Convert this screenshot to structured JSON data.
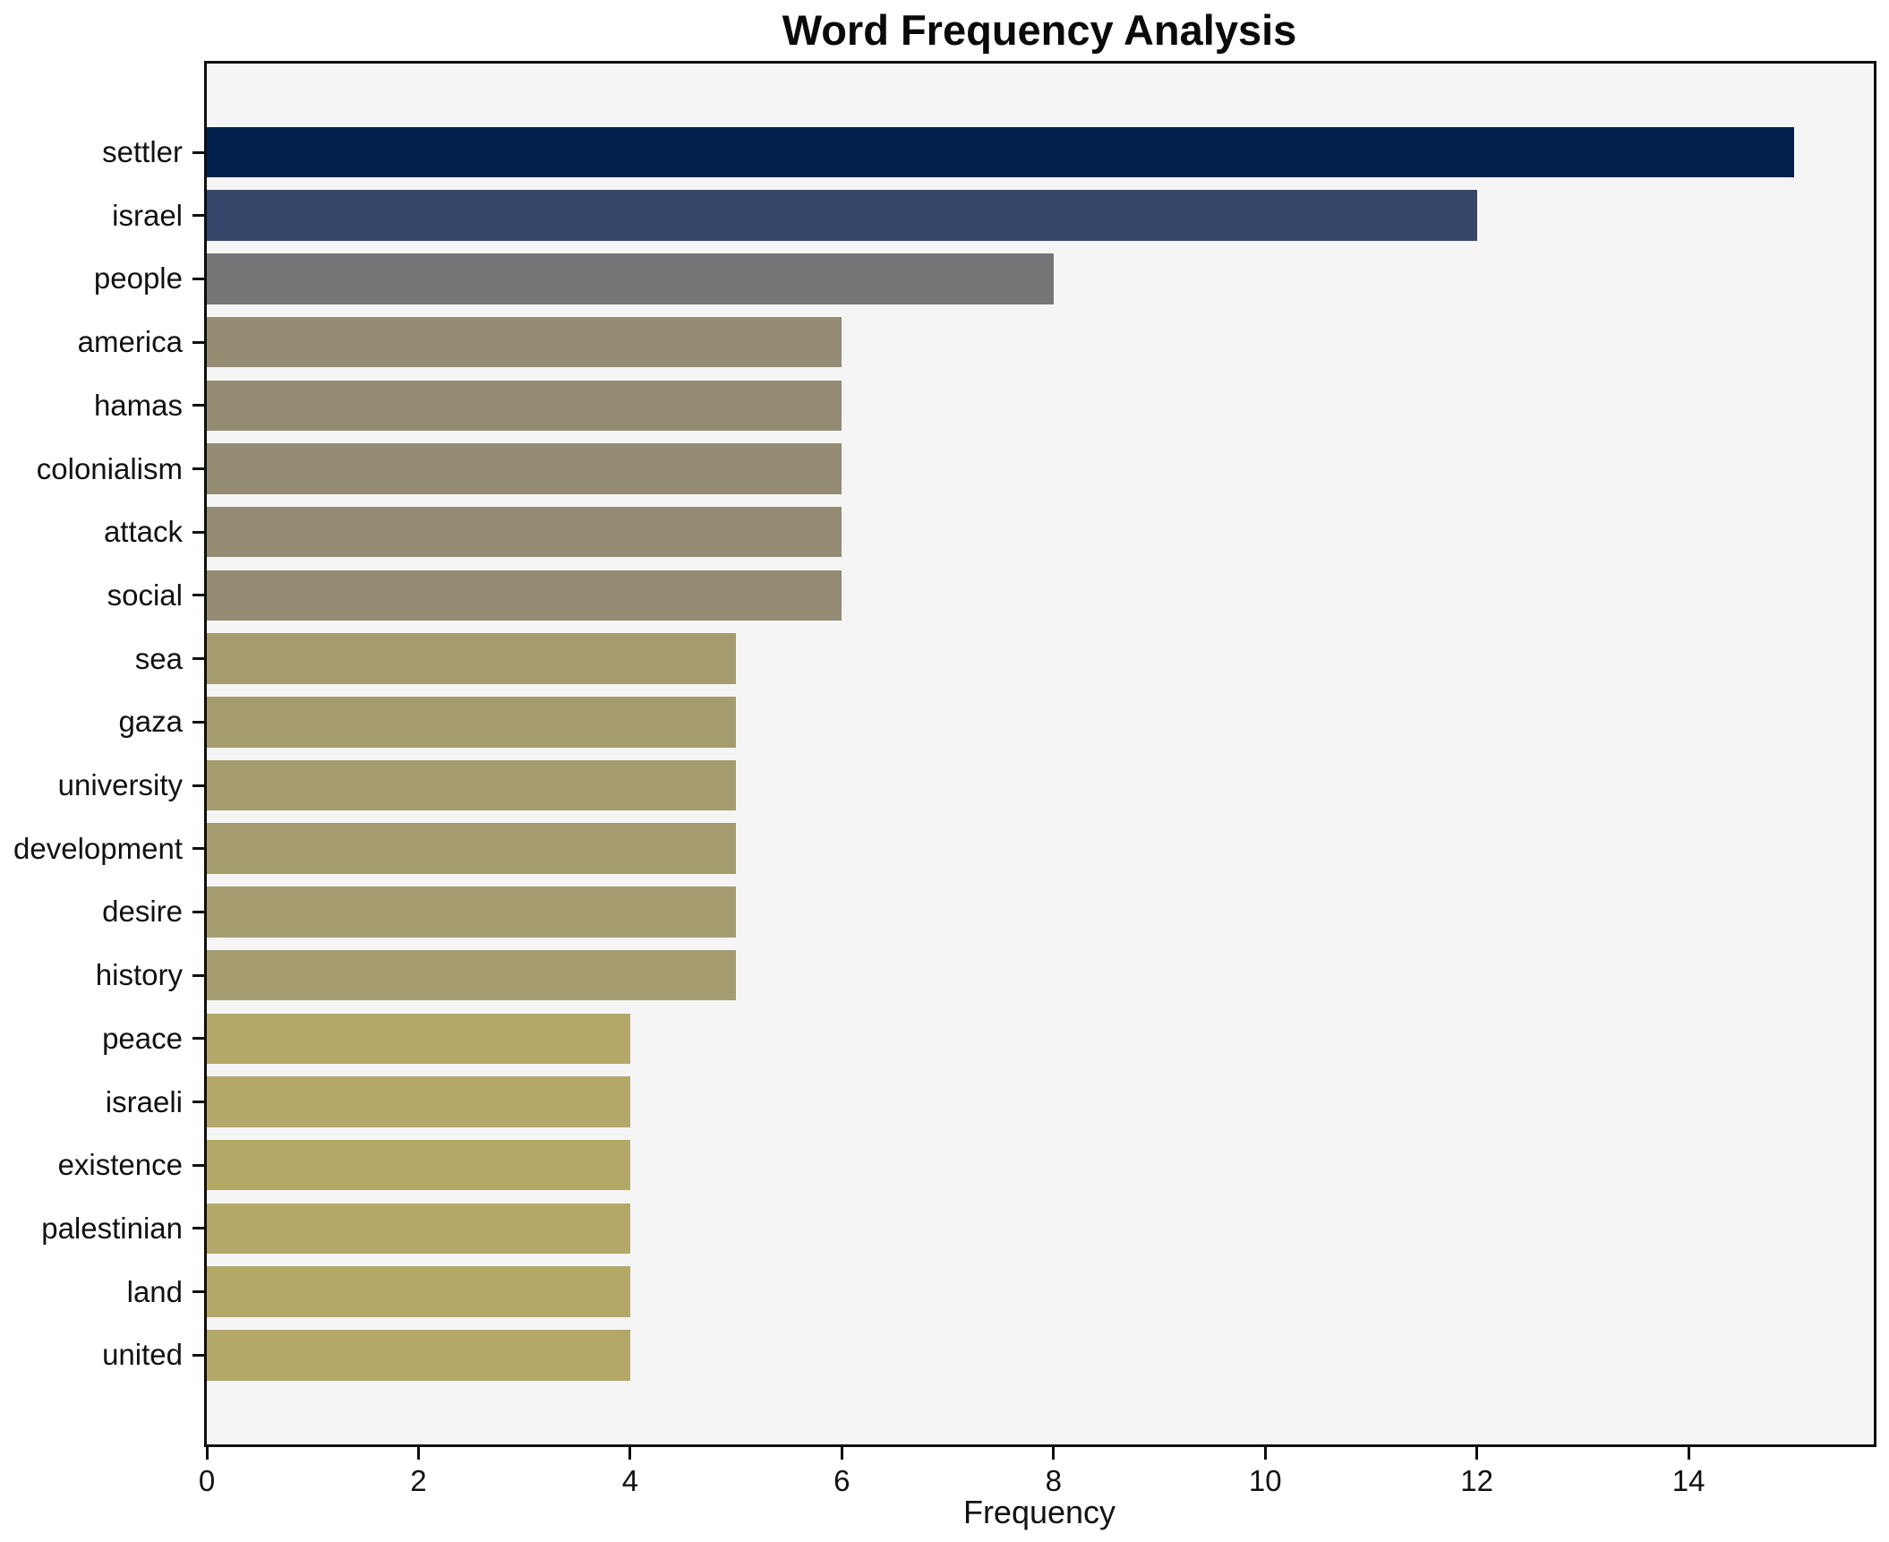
{
  "title": "Word Frequency Analysis",
  "xlabel": "Frequency",
  "colors": {
    "figure_background": "#ffffff",
    "plot_background": "#f5f5f6",
    "spine": "#0e0e0e",
    "text": "#111111"
  },
  "chart_data": {
    "type": "bar",
    "orientation": "horizontal",
    "title": "Word Frequency Analysis",
    "xlabel": "Frequency",
    "ylabel": "",
    "categories": [
      "settler",
      "israel",
      "people",
      "america",
      "hamas",
      "colonialism",
      "attack",
      "social",
      "sea",
      "gaza",
      "university",
      "development",
      "desire",
      "history",
      "peace",
      "israeli",
      "existence",
      "palestinian",
      "land",
      "united"
    ],
    "values": [
      15,
      12,
      8,
      6,
      6,
      6,
      6,
      6,
      5,
      5,
      5,
      5,
      5,
      5,
      4,
      4,
      4,
      4,
      4,
      4
    ],
    "bar_colors": [
      "#02204d",
      "#36466b",
      "#767577",
      "#938c73",
      "#938c73",
      "#938c73",
      "#938c73",
      "#938c73",
      "#a49c6e",
      "#a49c6e",
      "#a49c6e",
      "#a49c6e",
      "#a49c6e",
      "#a49c6e",
      "#b3a868",
      "#b3a868",
      "#b3a868",
      "#b3a868",
      "#b3a868",
      "#b3a868"
    ],
    "xlim": [
      0,
      15.75
    ],
    "xticks": [
      0,
      2,
      4,
      6,
      8,
      10,
      12,
      14
    ],
    "grid": false,
    "legend": null,
    "bar_value_labels": false
  }
}
